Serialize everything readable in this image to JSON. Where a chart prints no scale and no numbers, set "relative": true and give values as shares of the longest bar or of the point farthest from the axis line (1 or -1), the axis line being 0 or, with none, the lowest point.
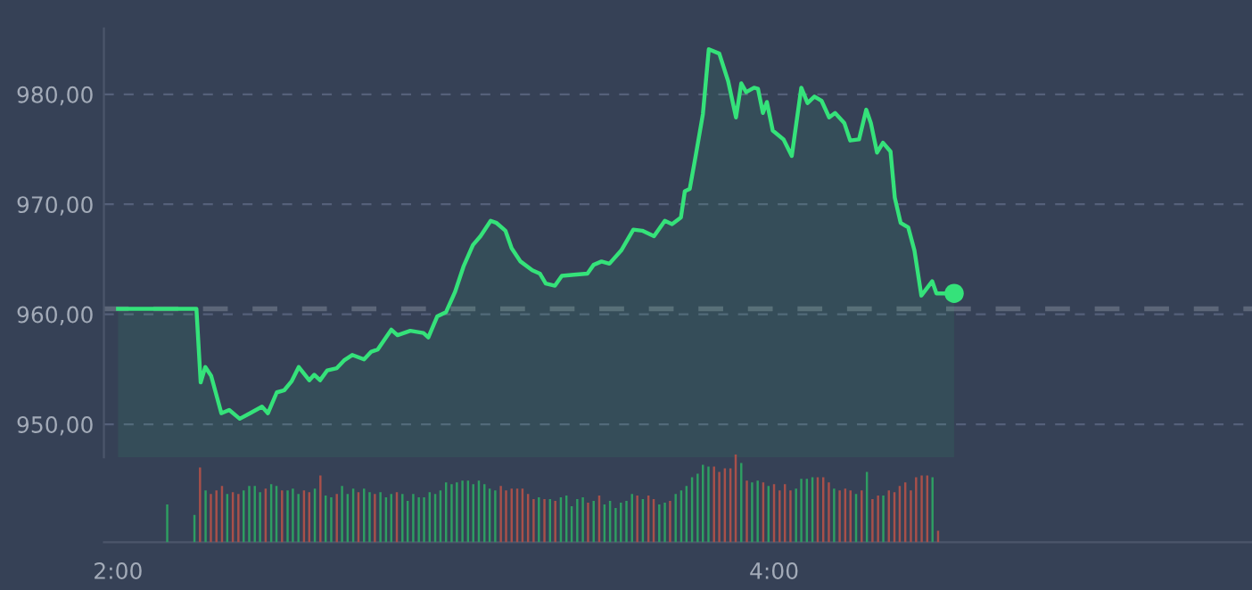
{
  "chart_data": [
    {
      "type": "area",
      "xlim": [
        1.957,
        5.457
      ],
      "ylim": [
        947,
        986
      ],
      "yticks": [
        {
          "value": 950,
          "label": "950,00"
        },
        {
          "value": 960,
          "label": "960,00"
        },
        {
          "value": 970,
          "label": "970,00"
        },
        {
          "value": 980,
          "label": "980,00"
        }
      ],
      "grid": "y",
      "tick_labels": "y",
      "ref_lines": [
        {
          "axis": "y",
          "value": 960.5,
          "label": null,
          "color": "#5c6678",
          "line_style": "dashed"
        }
      ],
      "series": [
        {
          "type": "area",
          "color": "#35e27a",
          "x": [
            2.0,
            2.239,
            2.252,
            2.266,
            2.284,
            2.315,
            2.339,
            2.371,
            2.402,
            2.439,
            2.457,
            2.484,
            2.507,
            2.529,
            2.551,
            2.583,
            2.598,
            2.616,
            2.638,
            2.667,
            2.689,
            2.714,
            2.75,
            2.772,
            2.792,
            2.833,
            2.852,
            2.891,
            2.931,
            2.946,
            2.973,
            3.0,
            3.027,
            3.054,
            3.082,
            3.105,
            3.136,
            3.154,
            3.181,
            3.2,
            3.227,
            3.263,
            3.286,
            3.304,
            3.332,
            3.353,
            3.39,
            3.431,
            3.45,
            3.474,
            3.498,
            3.534,
            3.571,
            3.598,
            3.634,
            3.667,
            3.689,
            3.716,
            3.728,
            3.743,
            3.761,
            3.783,
            3.801,
            3.833,
            3.86,
            3.884,
            3.9,
            3.915,
            3.939,
            3.951,
            3.966,
            3.978,
            3.996,
            4.029,
            4.054,
            4.083,
            4.102,
            4.123,
            4.145,
            4.168,
            4.186,
            4.214,
            4.232,
            4.259,
            4.281,
            4.295,
            4.314,
            4.332,
            4.355,
            4.368,
            4.386,
            4.409,
            4.428,
            4.449,
            4.482,
            4.495,
            4.522,
            4.549
          ],
          "values": [
            960.5,
            960.5,
            953.8,
            955.2,
            954.4,
            951.0,
            951.3,
            950.5,
            951.0,
            951.6,
            951.0,
            952.9,
            953.1,
            953.9,
            955.2,
            954.0,
            954.5,
            954.0,
            954.9,
            955.1,
            955.8,
            956.3,
            955.9,
            956.6,
            956.8,
            958.6,
            958.1,
            958.5,
            958.3,
            957.9,
            959.8,
            960.2,
            962.0,
            964.4,
            966.3,
            967.1,
            968.5,
            968.3,
            967.6,
            966.0,
            964.8,
            964.0,
            963.7,
            962.8,
            962.6,
            963.5,
            963.6,
            963.7,
            964.5,
            964.8,
            964.6,
            965.8,
            967.7,
            967.6,
            967.1,
            968.5,
            968.2,
            968.8,
            971.2,
            971.4,
            974.4,
            978.2,
            984.1,
            983.7,
            981.2,
            977.9,
            981.0,
            980.2,
            980.6,
            980.5,
            978.3,
            979.3,
            976.7,
            975.9,
            974.4,
            980.6,
            979.2,
            979.8,
            979.4,
            977.9,
            978.3,
            977.4,
            975.8,
            975.9,
            978.6,
            977.4,
            974.7,
            975.6,
            974.8,
            970.6,
            968.3,
            967.9,
            965.8,
            961.7,
            963.0,
            961.9,
            961.9,
            961.9
          ]
        },
        {
          "type": "scatter",
          "color": "#35e27a",
          "marker": "circle",
          "x": [
            4.549
          ],
          "values": [
            961.9
          ]
        }
      ]
    },
    {
      "type": "bar",
      "relative": true,
      "xlim": [
        1.957,
        5.457
      ],
      "xticks": [
        {
          "value": 2,
          "label": "2:00"
        },
        {
          "value": 4,
          "label": "4:00"
        }
      ],
      "tick_labels": "x",
      "x": [
        2.15,
        2.233,
        2.25,
        2.267,
        2.283,
        2.3,
        2.317,
        2.333,
        2.35,
        2.367,
        2.383,
        2.4,
        2.417,
        2.433,
        2.45,
        2.467,
        2.483,
        2.5,
        2.517,
        2.533,
        2.55,
        2.567,
        2.583,
        2.6,
        2.617,
        2.633,
        2.65,
        2.667,
        2.683,
        2.7,
        2.717,
        2.733,
        2.75,
        2.767,
        2.783,
        2.8,
        2.817,
        2.833,
        2.85,
        2.867,
        2.883,
        2.9,
        2.917,
        2.933,
        2.95,
        2.967,
        2.983,
        3.0,
        3.017,
        3.033,
        3.05,
        3.067,
        3.083,
        3.1,
        3.117,
        3.133,
        3.15,
        3.167,
        3.183,
        3.2,
        3.217,
        3.233,
        3.25,
        3.267,
        3.283,
        3.3,
        3.317,
        3.333,
        3.35,
        3.367,
        3.383,
        3.4,
        3.417,
        3.433,
        3.45,
        3.467,
        3.483,
        3.5,
        3.517,
        3.533,
        3.55,
        3.567,
        3.583,
        3.6,
        3.617,
        3.633,
        3.65,
        3.667,
        3.683,
        3.7,
        3.717,
        3.733,
        3.75,
        3.767,
        3.783,
        3.8,
        3.817,
        3.833,
        3.85,
        3.867,
        3.883,
        3.9,
        3.917,
        3.933,
        3.95,
        3.967,
        3.983,
        4.0,
        4.017,
        4.033,
        4.05,
        4.067,
        4.083,
        4.1,
        4.117,
        4.133,
        4.15,
        4.167,
        4.183,
        4.2,
        4.217,
        4.233,
        4.25,
        4.267,
        4.283,
        4.3,
        4.317,
        4.333,
        4.35,
        4.367,
        4.383,
        4.4,
        4.417,
        4.433,
        4.45,
        4.467,
        4.483,
        4.5
      ],
      "values": [
        0.43,
        0.31,
        0.85,
        0.59,
        0.55,
        0.59,
        0.64,
        0.55,
        0.57,
        0.55,
        0.59,
        0.64,
        0.64,
        0.57,
        0.61,
        0.66,
        0.64,
        0.59,
        0.59,
        0.61,
        0.55,
        0.59,
        0.57,
        0.61,
        0.76,
        0.53,
        0.51,
        0.55,
        0.64,
        0.55,
        0.61,
        0.57,
        0.61,
        0.57,
        0.55,
        0.57,
        0.51,
        0.55,
        0.57,
        0.55,
        0.47,
        0.55,
        0.51,
        0.51,
        0.57,
        0.55,
        0.59,
        0.68,
        0.66,
        0.68,
        0.7,
        0.7,
        0.66,
        0.7,
        0.66,
        0.61,
        0.59,
        0.64,
        0.59,
        0.61,
        0.61,
        0.61,
        0.55,
        0.49,
        0.51,
        0.49,
        0.49,
        0.47,
        0.51,
        0.53,
        0.41,
        0.49,
        0.51,
        0.45,
        0.47,
        0.53,
        0.43,
        0.47,
        0.39,
        0.45,
        0.47,
        0.55,
        0.53,
        0.49,
        0.53,
        0.49,
        0.43,
        0.45,
        0.47,
        0.55,
        0.59,
        0.64,
        0.74,
        0.78,
        0.88,
        0.86,
        0.86,
        0.8,
        0.84,
        0.84,
        1,
        0.9,
        0.7,
        0.68,
        0.7,
        0.68,
        0.64,
        0.66,
        0.59,
        0.66,
        0.59,
        0.61,
        0.72,
        0.72,
        0.74,
        0.74,
        0.74,
        0.68,
        0.61,
        0.59,
        0.61,
        0.59,
        0.55,
        0.59,
        0.8,
        0.49,
        0.53,
        0.53,
        0.59,
        0.57,
        0.64,
        0.68,
        0.59,
        0.74,
        0.76,
        0.76,
        0.74,
        0.13
      ],
      "colors": [
        "#2e9e62",
        "#2e9e62",
        "#a8504a",
        "#2e9e62",
        "#a8504a",
        "#a8504a",
        "#a8504a",
        "#2e9e62",
        "#a8504a",
        "#a8504a",
        "#2e9e62",
        "#2e9e62",
        "#2e9e62",
        "#2e9e62",
        "#a8504a",
        "#2e9e62",
        "#2e9e62",
        "#a8504a",
        "#2e9e62",
        "#2e9e62",
        "#2e9e62",
        "#a8504a",
        "#a8504a",
        "#2e9e62",
        "#a8504a",
        "#2e9e62",
        "#2e9e62",
        "#a8504a",
        "#2e9e62",
        "#2e9e62",
        "#2e9e62",
        "#a8504a",
        "#2e9e62",
        "#2e9e62",
        "#a8504a",
        "#2e9e62",
        "#2e9e62",
        "#2e9e62",
        "#a8504a",
        "#2e9e62",
        "#2e9e62",
        "#2e9e62",
        "#2e9e62",
        "#2e9e62",
        "#2e9e62",
        "#2e9e62",
        "#2e9e62",
        "#2e9e62",
        "#2e9e62",
        "#2e9e62",
        "#2e9e62",
        "#2e9e62",
        "#2e9e62",
        "#2e9e62",
        "#2e9e62",
        "#2e9e62",
        "#2e9e62",
        "#a8504a",
        "#a8504a",
        "#a8504a",
        "#a8504a",
        "#a8504a",
        "#a8504a",
        "#a8504a",
        "#2e9e62",
        "#a8504a",
        "#2e9e62",
        "#a8504a",
        "#2e9e62",
        "#2e9e62",
        "#2e9e62",
        "#2e9e62",
        "#2e9e62",
        "#a8504a",
        "#2e9e62",
        "#a8504a",
        "#2e9e62",
        "#2e9e62",
        "#2e9e62",
        "#2e9e62",
        "#2e9e62",
        "#2e9e62",
        "#a8504a",
        "#2e9e62",
        "#a8504a",
        "#a8504a",
        "#2e9e62",
        "#2e9e62",
        "#a8504a",
        "#2e9e62",
        "#2e9e62",
        "#2e9e62",
        "#2e9e62",
        "#2e9e62",
        "#2e9e62",
        "#2e9e62",
        "#a8504a",
        "#a8504a",
        "#a8504a",
        "#a8504a",
        "#a8504a",
        "#2e9e62",
        "#a8504a",
        "#2e9e62",
        "#2e9e62",
        "#a8504a",
        "#2e9e62",
        "#a8504a",
        "#a8504a",
        "#a8504a",
        "#a8504a",
        "#2e9e62",
        "#2e9e62",
        "#2e9e62",
        "#2e9e62",
        "#a8504a",
        "#a8504a",
        "#a8504a",
        "#2e9e62",
        "#a8504a",
        "#a8504a",
        "#a8504a",
        "#2e9e62",
        "#a8504a",
        "#2e9e62",
        "#a8504a",
        "#a8504a",
        "#2e9e62",
        "#a8504a",
        "#a8504a",
        "#a8504a",
        "#a8504a",
        "#a8504a",
        "#a8504a",
        "#a8504a",
        "#a8504a",
        "#2e9e62",
        "#a8504a"
      ]
    }
  ]
}
